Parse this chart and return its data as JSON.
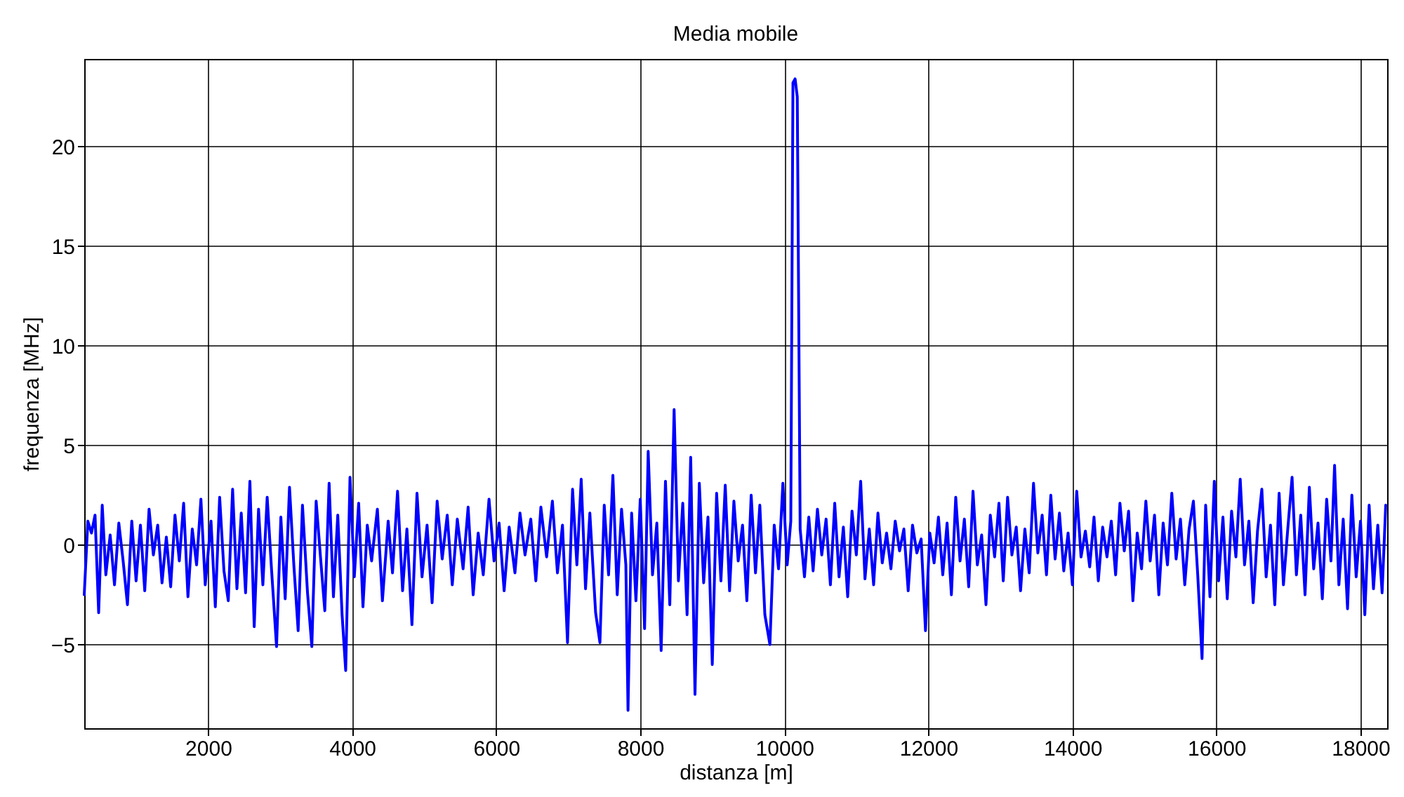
{
  "chart_data": {
    "type": "line",
    "title": "Media mobile",
    "xlabel": "distanza [m]",
    "ylabel": "frequenza [MHz]",
    "x": [
      280,
      330,
      380,
      430,
      480,
      530,
      580,
      640,
      700,
      760,
      820,
      880,
      940,
      1000,
      1060,
      1120,
      1180,
      1240,
      1300,
      1360,
      1420,
      1480,
      1540,
      1600,
      1660,
      1720,
      1780,
      1840,
      1900,
      1960,
      2040,
      2100,
      2160,
      2220,
      2280,
      2340,
      2400,
      2460,
      2520,
      2580,
      2640,
      2700,
      2760,
      2820,
      2880,
      2950,
      3010,
      3070,
      3130,
      3190,
      3250,
      3310,
      3380,
      3440,
      3500,
      3560,
      3620,
      3680,
      3740,
      3800,
      3860,
      3910,
      3970,
      4030,
      4090,
      4150,
      4210,
      4270,
      4350,
      4420,
      4500,
      4560,
      4630,
      4700,
      4760,
      4830,
      4900,
      4970,
      5040,
      5110,
      5180,
      5250,
      5320,
      5390,
      5460,
      5540,
      5610,
      5680,
      5750,
      5820,
      5900,
      5970,
      6040,
      6110,
      6180,
      6260,
      6330,
      6400,
      6480,
      6550,
      6620,
      6700,
      6780,
      6850,
      6920,
      6990,
      7060,
      7120,
      7180,
      7240,
      7300,
      7380,
      7440,
      7500,
      7560,
      7620,
      7680,
      7740,
      7800,
      7830,
      7880,
      7940,
      8000,
      8060,
      8110,
      8170,
      8230,
      8290,
      8350,
      8410,
      8470,
      8530,
      8590,
      8650,
      8700,
      8760,
      8820,
      8880,
      8940,
      9000,
      9060,
      9120,
      9180,
      9240,
      9300,
      9360,
      9420,
      9480,
      9540,
      9600,
      9660,
      9730,
      9800,
      9860,
      9920,
      9980,
      10040,
      10090,
      10120,
      10150,
      10180,
      10220,
      10280,
      10340,
      10400,
      10460,
      10520,
      10580,
      10640,
      10700,
      10760,
      10820,
      10880,
      10940,
      11000,
      11060,
      11120,
      11180,
      11240,
      11300,
      11360,
      11420,
      11480,
      11540,
      11600,
      11660,
      11720,
      11780,
      11840,
      11900,
      11960,
      12020,
      12080,
      12140,
      12200,
      12260,
      12320,
      12380,
      12440,
      12500,
      12560,
      12620,
      12680,
      12740,
      12800,
      12860,
      12920,
      12980,
      13040,
      13100,
      13160,
      13220,
      13280,
      13340,
      13400,
      13460,
      13520,
      13580,
      13640,
      13700,
      13760,
      13820,
      13880,
      13940,
      14000,
      14060,
      14120,
      14180,
      14240,
      14300,
      14360,
      14420,
      14480,
      14540,
      14600,
      14660,
      14720,
      14780,
      14840,
      14900,
      14960,
      15020,
      15080,
      15140,
      15200,
      15260,
      15320,
      15380,
      15440,
      15500,
      15560,
      15620,
      15680,
      15740,
      15800,
      15850,
      15910,
      15970,
      16030,
      16090,
      16150,
      16210,
      16270,
      16330,
      16390,
      16450,
      16510,
      16570,
      16630,
      16690,
      16750,
      16810,
      16870,
      16930,
      16990,
      17050,
      17110,
      17170,
      17230,
      17290,
      17350,
      17410,
      17470,
      17530,
      17590,
      17640,
      17700,
      17760,
      17820,
      17880,
      17940,
      18000,
      18060,
      18120,
      18180,
      18240,
      18300,
      18350
    ],
    "series": [
      {
        "color": "#0000ff",
        "values": [
          -2.5,
          1.2,
          0.6,
          1.5,
          -3.4,
          2.0,
          -1.5,
          0.5,
          -2.0,
          1.1,
          -0.8,
          -3.0,
          1.2,
          -1.8,
          1.0,
          -2.3,
          1.8,
          -0.5,
          1.0,
          -1.9,
          0.4,
          -2.1,
          1.5,
          -0.8,
          2.1,
          -2.6,
          0.8,
          -1.0,
          2.3,
          -2.0,
          1.2,
          -3.1,
          2.4,
          -1.3,
          -2.8,
          2.8,
          -2.2,
          1.6,
          -2.4,
          3.2,
          -4.1,
          1.8,
          -2.0,
          2.4,
          -1.2,
          -5.1,
          1.4,
          -2.7,
          2.9,
          -1.0,
          -4.3,
          2.0,
          -2.4,
          -5.1,
          2.2,
          -0.6,
          -3.3,
          3.1,
          -2.6,
          1.5,
          -3.5,
          -6.3,
          3.4,
          -1.6,
          2.1,
          -3.1,
          1.0,
          -0.8,
          1.8,
          -2.8,
          1.2,
          -1.4,
          2.7,
          -2.3,
          0.8,
          -4.0,
          2.6,
          -1.6,
          1.0,
          -2.9,
          2.2,
          -0.7,
          1.5,
          -2.0,
          1.3,
          -1.2,
          1.9,
          -2.5,
          0.6,
          -1.5,
          2.3,
          -0.8,
          1.1,
          -2.3,
          0.9,
          -1.4,
          1.6,
          -0.5,
          1.3,
          -1.8,
          1.9,
          -0.6,
          2.2,
          -1.4,
          1.0,
          -4.9,
          2.8,
          -1.0,
          3.3,
          -2.2,
          1.6,
          -3.4,
          -4.9,
          2.0,
          -1.5,
          3.5,
          -2.5,
          1.8,
          -1.0,
          -8.3,
          1.6,
          -2.8,
          2.3,
          -4.2,
          4.7,
          -1.5,
          1.1,
          -5.3,
          3.2,
          -3.0,
          6.8,
          -1.8,
          2.1,
          -3.5,
          4.4,
          -7.5,
          3.1,
          -1.9,
          1.4,
          -6.0,
          2.6,
          -1.8,
          3.0,
          -2.3,
          2.2,
          -0.8,
          1.0,
          -2.8,
          2.5,
          -1.4,
          2.0,
          -3.5,
          -5.0,
          1.0,
          -1.2,
          3.1,
          -1.0,
          1.2,
          23.2,
          23.4,
          22.5,
          0.8,
          -1.6,
          1.4,
          -1.3,
          1.8,
          -0.5,
          1.3,
          -2.0,
          2.1,
          -1.6,
          0.9,
          -2.6,
          1.7,
          -0.5,
          3.2,
          -1.7,
          0.8,
          -2.0,
          1.6,
          -0.9,
          0.6,
          -1.2,
          1.2,
          -0.3,
          0.8,
          -2.3,
          1.0,
          -0.4,
          0.3,
          -4.3,
          0.6,
          -0.9,
          1.4,
          -1.5,
          1.1,
          -2.5,
          2.4,
          -0.8,
          1.3,
          -2.1,
          2.7,
          -1.0,
          0.5,
          -3.0,
          1.5,
          -0.6,
          2.1,
          -1.8,
          2.4,
          -0.5,
          0.9,
          -2.3,
          0.8,
          -1.4,
          3.1,
          -0.4,
          1.5,
          -1.5,
          2.5,
          -0.7,
          1.6,
          -1.3,
          0.6,
          -2.0,
          2.7,
          -0.6,
          0.7,
          -1.1,
          1.4,
          -1.8,
          0.9,
          -0.6,
          1.2,
          -1.5,
          2.1,
          -0.3,
          1.7,
          -2.8,
          0.6,
          -1.2,
          2.2,
          -0.8,
          1.5,
          -2.5,
          1.1,
          -1.0,
          2.6,
          -0.7,
          1.3,
          -2.0,
          0.8,
          2.2,
          -1.5,
          -5.7,
          2.0,
          -2.6,
          3.2,
          -1.8,
          1.4,
          -2.7,
          1.7,
          -0.6,
          3.3,
          -1.0,
          1.2,
          -2.9,
          0.7,
          2.8,
          -1.6,
          1.0,
          -3.0,
          2.6,
          -2.0,
          0.8,
          3.4,
          -1.5,
          1.5,
          -2.5,
          2.9,
          -1.2,
          1.1,
          -2.7,
          2.3,
          -0.8,
          4.0,
          -2.0,
          1.3,
          -3.2,
          2.5,
          -1.6,
          1.2,
          -3.5,
          2.0,
          -2.2,
          1.0,
          -2.4,
          2.0
        ]
      }
    ],
    "xlim": [
      280,
      18370
    ],
    "ylim": [
      -9.2,
      24.4
    ],
    "xticks": [
      2000,
      4000,
      6000,
      8000,
      10000,
      12000,
      14000,
      16000,
      18000
    ],
    "yticks": [
      -5,
      0,
      5,
      10,
      15,
      20
    ],
    "grid": true,
    "line_style": "solid"
  }
}
